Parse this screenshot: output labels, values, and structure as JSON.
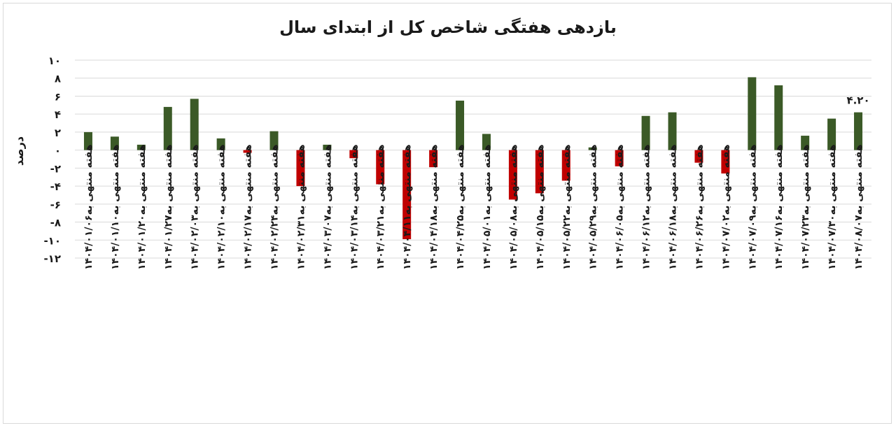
{
  "chart_data": {
    "type": "bar",
    "title": "بازدهی هفتگی شاخص کل از ابتدای سال",
    "ylabel": "درصد",
    "xlabel": "",
    "ylim": [
      -12,
      10
    ],
    "yticks": [
      10,
      8,
      6,
      4,
      2,
      0,
      -2,
      -4,
      -6,
      -8,
      -10,
      -12
    ],
    "ytick_labels": [
      "۱۰",
      "۸",
      "۶",
      "۴",
      "۲",
      "۰",
      "-۲",
      "-۴",
      "-۶",
      "-۸",
      "-۱۰",
      "-۱۲"
    ],
    "grid": true,
    "positive_color": "#3b5a27",
    "negative_color": "#c00000",
    "categories": [
      "هفته منتهی به۱۴۰۴/۰۱/۰۶",
      "هفته منتهی به۱۴۰۴/۰۱/۱۰",
      "هفته منتهی به۱۴۰۴/۰۱/۲۰",
      "هفته منتهی به۱۴۰۴/۰۱/۲۷",
      "هفته منتهی به۱۴۰۴/۰۲/۰۳",
      "هفته منتهی به۱۴۰۴/۰۲/۱۰",
      "هفته منتهی به۱۴۰۴/۰۲/۱۷",
      "هفته منتهی به۱۴۰۴/۰۲/۲۴",
      "هفته منتهی به۱۴۰۴/۰۲/۳۱",
      "هفته منتهی به۱۴۰۴/۰۳/۰۷",
      "هفته منتهی به۱۴۰۴/۰۳/۱۴",
      "هفته منتهی به۱۴۰۴/۰۳/۲۱",
      "هفته منتهی به۱۴۰۴/۰۴/۱۱",
      "هفته منتهی به۱۴۰۴/۰۴/۱۸",
      "هفته منتهی به۱۴۰۴/۰۴/۲۵",
      "هفته منتهی به۱۴۰۴/۰۵/۰۱",
      "هفته منتهی به۱۴۰۴/۰۵/۰۸",
      "هفته منتهی به۱۴۰۴/۰۵/۱۵",
      "هفته منتهی به۱۴۰۴/۰۵/۲۲",
      "هفته منتهی به۱۴۰۴/۰۵/۲۹",
      "هفته منتهی به۱۴۰۴/۰۶/۰۵",
      "هفته منتهی به۱۴۰۴/۰۶/۱۲",
      "هفته منتهی به۱۴۰۴/۰۶/۱۸",
      "هفته منتهی به۱۴۰۴/۰۶/۲۶",
      "هفته منتهی به۱۴۰۴/۰۷/۰۲",
      "هفته منتهی به۱۴۰۴/۰۷/۰۹",
      "هفته منتهی به۱۴۰۴/۰۷/۱۶",
      "هفته منتهی به۱۴۰۴/۰۷/۲۳",
      "هفته منتهی به۱۴۰۴/۰۷/۳۰",
      "هفته منتهی به۱۴۰۴/۰۸/۰۷"
    ],
    "values": [
      2.0,
      1.5,
      0.6,
      4.8,
      5.7,
      1.3,
      -0.3,
      2.1,
      -4.0,
      0.6,
      -0.9,
      -3.8,
      -9.9,
      -1.9,
      5.5,
      1.8,
      -5.5,
      -4.8,
      -3.4,
      0.3,
      -1.8,
      3.8,
      4.2,
      -1.4,
      -2.6,
      8.1,
      7.2,
      1.6,
      3.5,
      4.2
    ],
    "data_labels": [
      {
        "index": 29,
        "text": "۴.۲۰"
      }
    ]
  }
}
